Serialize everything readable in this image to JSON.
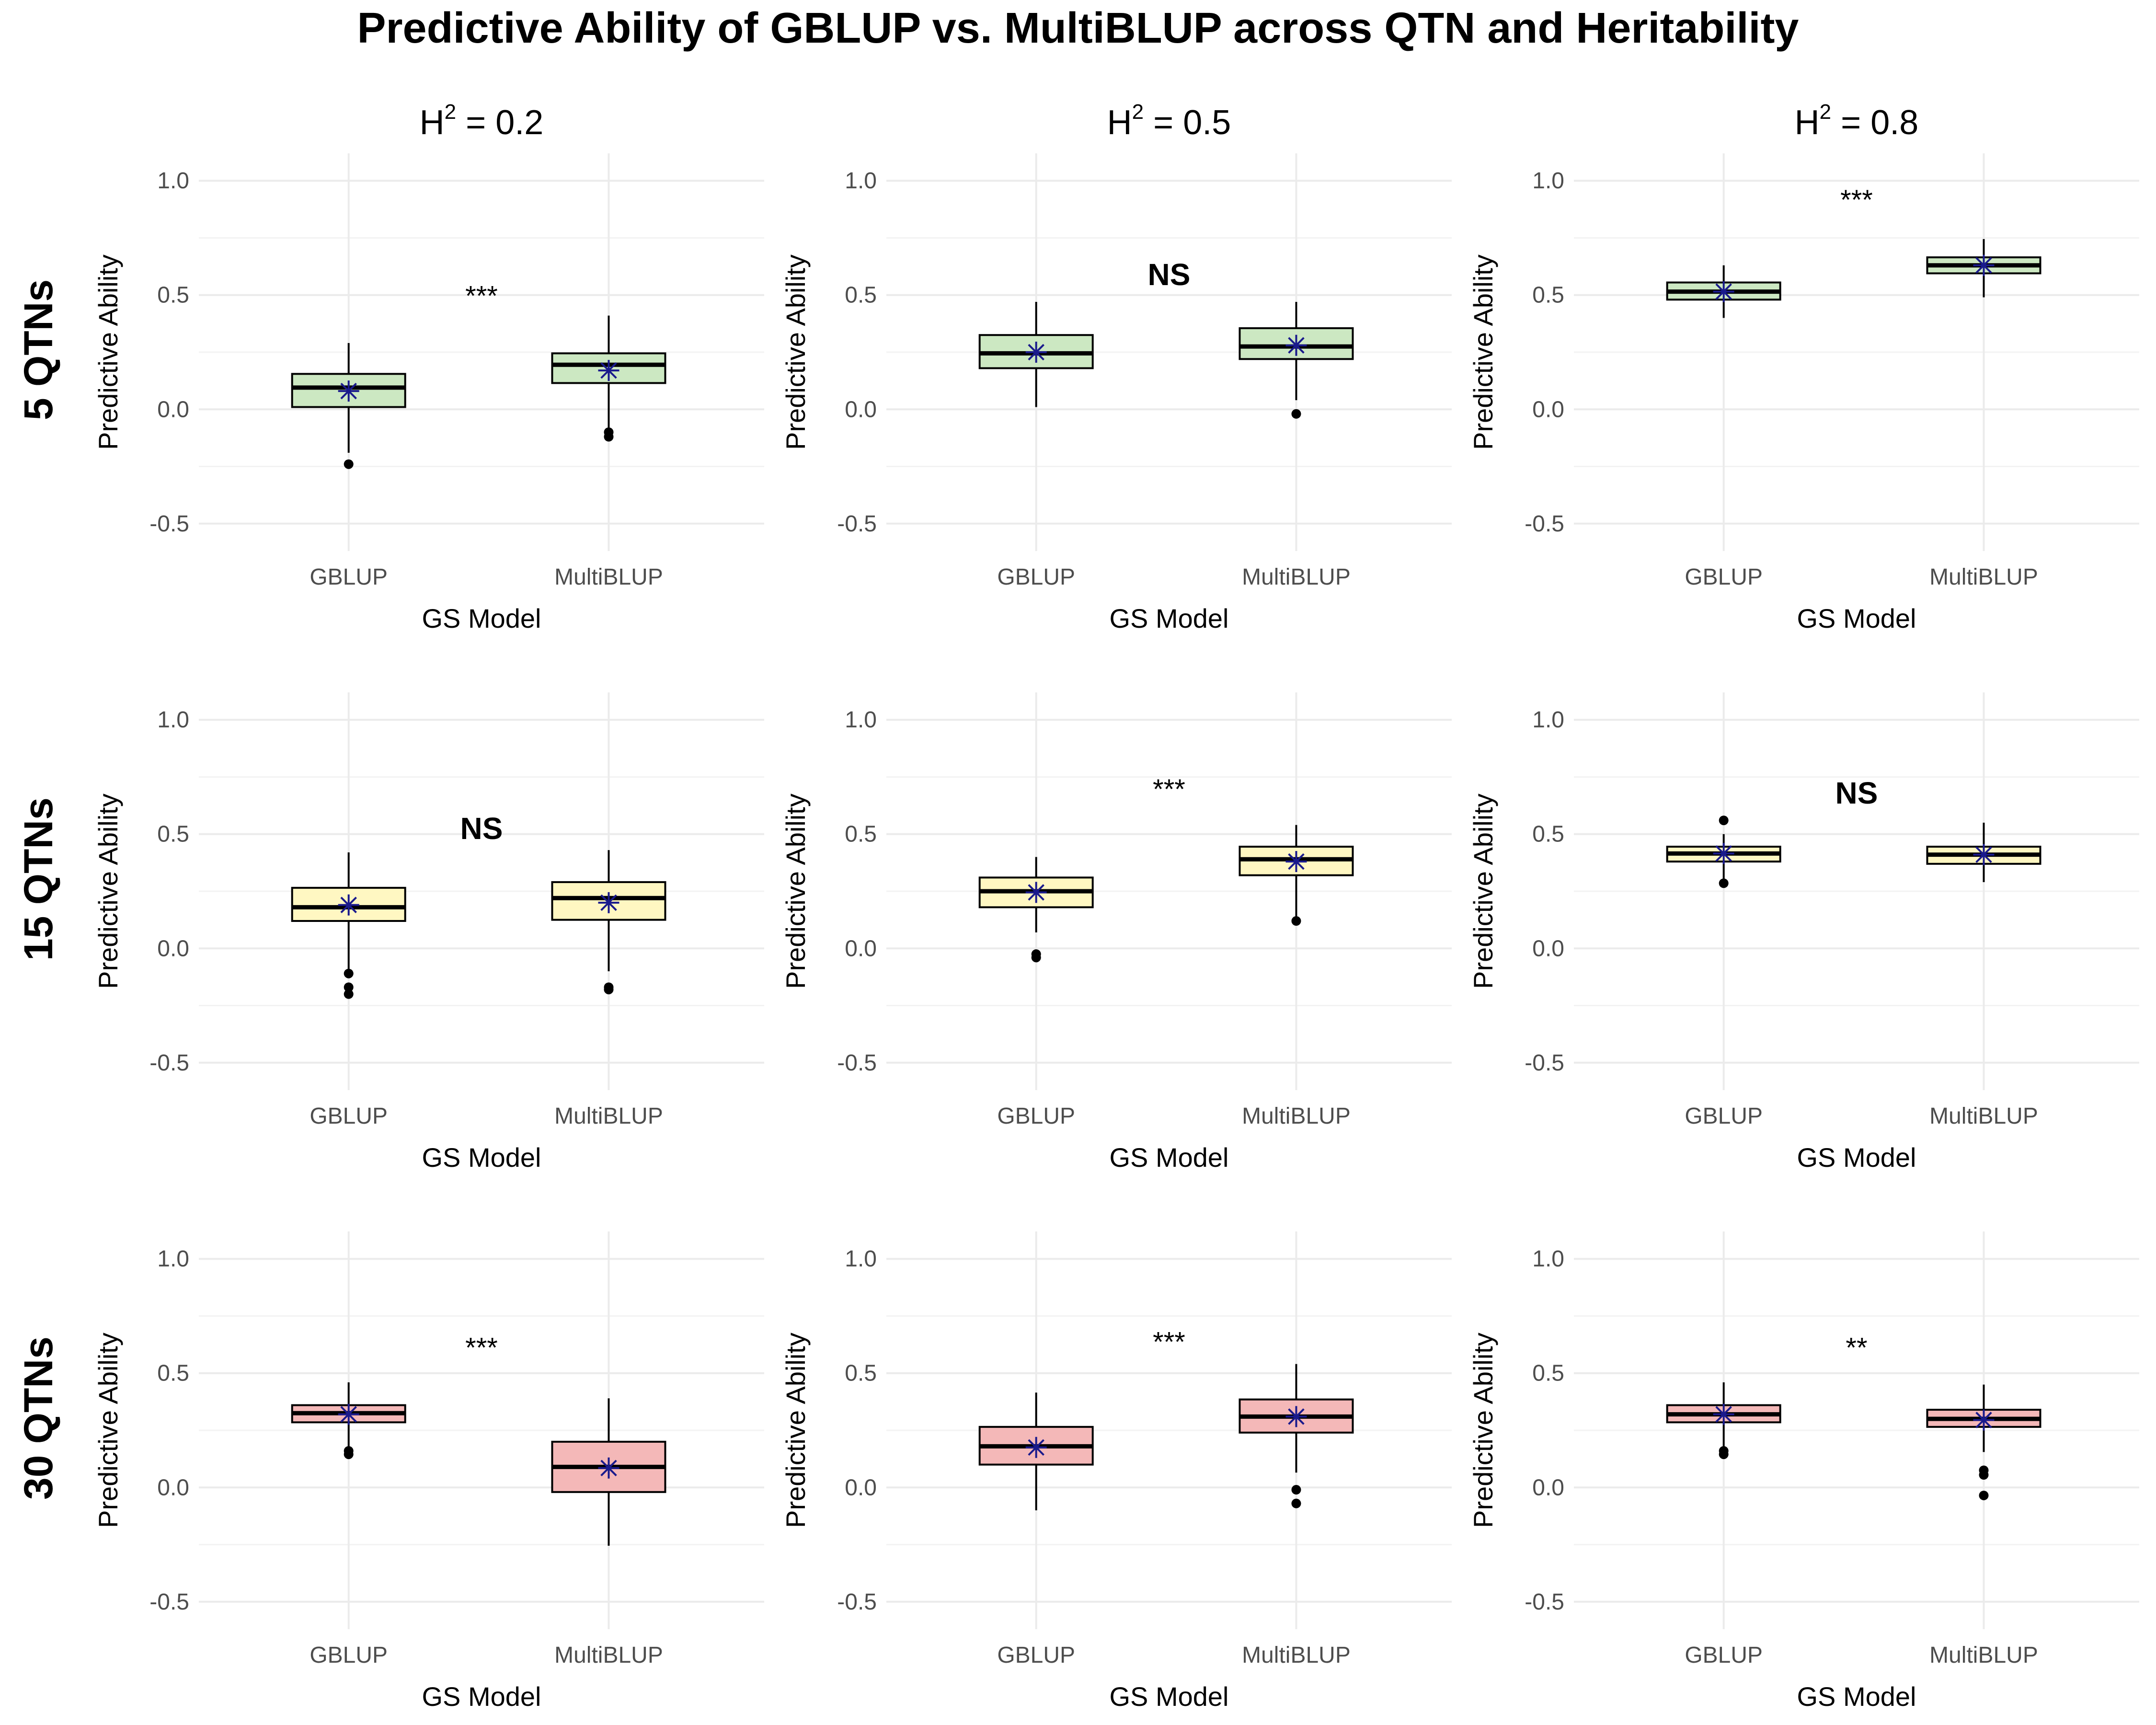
{
  "title": "Predictive Ability of GBLUP vs. MultiBLUP across QTN and Heritability",
  "row_labels": [
    "5 QTNs",
    "15 QTNs",
    "30 QTNs"
  ],
  "column_headers": [
    {
      "base": "H",
      "sup": "2",
      "rest": " = 0.2"
    },
    {
      "base": "H",
      "sup": "2",
      "rest": " = 0.5"
    },
    {
      "base": "H",
      "sup": "2",
      "rest": " = 0.8"
    }
  ],
  "colors": {
    "5 QTNs": "#cce8c2",
    "15 QTNs": "#fff7c2",
    "30 QTNs": "#f4b8b8",
    "mean_marker": "#1a1a8c",
    "grid": "#ebebeb"
  },
  "chart_data": [
    {
      "type": "box",
      "row": "5 QTNs",
      "col": "H2 = 0.2",
      "xlabel": "GS Model",
      "ylabel": "Predictive Ability",
      "ylim": [
        -0.5,
        1.0
      ],
      "yticks": [
        -0.5,
        0.0,
        0.5,
        1.0
      ],
      "ytick_labels": [
        "-0.5",
        "0.0",
        "0.5",
        "1.0"
      ],
      "categories": [
        "GBLUP",
        "MultiBLUP"
      ],
      "annotation": "***",
      "boxes": [
        {
          "whisker_low": -0.19,
          "q1": 0.01,
          "median": 0.095,
          "q3": 0.155,
          "whisker_high": 0.29,
          "mean": 0.08,
          "outliers": [
            -0.24
          ]
        },
        {
          "whisker_low": -0.08,
          "q1": 0.115,
          "median": 0.195,
          "q3": 0.245,
          "whisker_high": 0.41,
          "mean": 0.17,
          "outliers": [
            -0.1,
            -0.12
          ]
        }
      ]
    },
    {
      "type": "box",
      "row": "5 QTNs",
      "col": "H2 = 0.5",
      "xlabel": "GS Model",
      "ylabel": "Predictive Ability",
      "ylim": [
        -0.5,
        1.0
      ],
      "yticks": [
        -0.5,
        0.0,
        0.5,
        1.0
      ],
      "ytick_labels": [
        "-0.5",
        "0.0",
        "0.5",
        "1.0"
      ],
      "categories": [
        "GBLUP",
        "MultiBLUP"
      ],
      "annotation": "NS",
      "boxes": [
        {
          "whisker_low": 0.01,
          "q1": 0.18,
          "median": 0.245,
          "q3": 0.325,
          "whisker_high": 0.47,
          "mean": 0.25,
          "outliers": []
        },
        {
          "whisker_low": 0.04,
          "q1": 0.22,
          "median": 0.275,
          "q3": 0.355,
          "whisker_high": 0.47,
          "mean": 0.28,
          "outliers": [
            -0.02
          ]
        }
      ]
    },
    {
      "type": "box",
      "row": "5 QTNs",
      "col": "H2 = 0.8",
      "xlabel": "GS Model",
      "ylabel": "Predictive Ability",
      "ylim": [
        -0.5,
        1.0
      ],
      "yticks": [
        -0.5,
        0.0,
        0.5,
        1.0
      ],
      "ytick_labels": [
        "-0.5",
        "0.0",
        "0.5",
        "1.0"
      ],
      "categories": [
        "GBLUP",
        "MultiBLUP"
      ],
      "annotation": "***",
      "boxes": [
        {
          "whisker_low": 0.4,
          "q1": 0.48,
          "median": 0.515,
          "q3": 0.555,
          "whisker_high": 0.63,
          "mean": 0.515,
          "outliers": []
        },
        {
          "whisker_low": 0.49,
          "q1": 0.595,
          "median": 0.63,
          "q3": 0.665,
          "whisker_high": 0.745,
          "mean": 0.63,
          "outliers": []
        }
      ]
    },
    {
      "type": "box",
      "row": "15 QTNs",
      "col": "H2 = 0.2",
      "xlabel": "GS Model",
      "ylabel": "Predictive Ability",
      "ylim": [
        -0.5,
        1.0
      ],
      "yticks": [
        -0.5,
        0.0,
        0.5,
        1.0
      ],
      "ytick_labels": [
        "-0.5",
        "0.0",
        "0.5",
        "1.0"
      ],
      "categories": [
        "GBLUP",
        "MultiBLUP"
      ],
      "annotation": "NS",
      "boxes": [
        {
          "whisker_low": -0.1,
          "q1": 0.12,
          "median": 0.18,
          "q3": 0.265,
          "whisker_high": 0.42,
          "mean": 0.19,
          "outliers": [
            -0.11,
            -0.17,
            -0.2
          ]
        },
        {
          "whisker_low": -0.1,
          "q1": 0.125,
          "median": 0.22,
          "q3": 0.29,
          "whisker_high": 0.43,
          "mean": 0.2,
          "outliers": [
            -0.17,
            -0.18
          ]
        }
      ]
    },
    {
      "type": "box",
      "row": "15 QTNs",
      "col": "H2 = 0.5",
      "xlabel": "GS Model",
      "ylabel": "Predictive Ability",
      "ylim": [
        -0.5,
        1.0
      ],
      "yticks": [
        -0.5,
        0.0,
        0.5,
        1.0
      ],
      "ytick_labels": [
        "-0.5",
        "0.0",
        "0.5",
        "1.0"
      ],
      "categories": [
        "GBLUP",
        "MultiBLUP"
      ],
      "annotation": "***",
      "boxes": [
        {
          "whisker_low": 0.07,
          "q1": 0.18,
          "median": 0.25,
          "q3": 0.31,
          "whisker_high": 0.4,
          "mean": 0.245,
          "outliers": [
            -0.025,
            -0.04
          ]
        },
        {
          "whisker_low": 0.12,
          "q1": 0.32,
          "median": 0.39,
          "q3": 0.445,
          "whisker_high": 0.54,
          "mean": 0.38,
          "outliers": [
            0.12
          ]
        }
      ]
    },
    {
      "type": "box",
      "row": "15 QTNs",
      "col": "H2 = 0.8",
      "xlabel": "GS Model",
      "ylabel": "Predictive Ability",
      "ylim": [
        -0.5,
        1.0
      ],
      "yticks": [
        -0.5,
        0.0,
        0.5,
        1.0
      ],
      "ytick_labels": [
        "-0.5",
        "0.0",
        "0.5",
        "1.0"
      ],
      "categories": [
        "GBLUP",
        "MultiBLUP"
      ],
      "annotation": "NS",
      "boxes": [
        {
          "whisker_low": 0.3,
          "q1": 0.38,
          "median": 0.415,
          "q3": 0.445,
          "whisker_high": 0.5,
          "mean": 0.415,
          "outliers": [
            0.56,
            0.285
          ]
        },
        {
          "whisker_low": 0.29,
          "q1": 0.37,
          "median": 0.41,
          "q3": 0.445,
          "whisker_high": 0.55,
          "mean": 0.41,
          "outliers": []
        }
      ]
    },
    {
      "type": "box",
      "row": "30 QTNs",
      "col": "H2 = 0.2",
      "xlabel": "GS Model",
      "ylabel": "Predictive Ability",
      "ylim": [
        -0.5,
        1.0
      ],
      "yticks": [
        -0.5,
        0.0,
        0.5,
        1.0
      ],
      "ytick_labels": [
        "-0.5",
        "0.0",
        "0.5",
        "1.0"
      ],
      "categories": [
        "GBLUP",
        "MultiBLUP"
      ],
      "annotation": "***",
      "boxes": [
        {
          "whisker_low": 0.18,
          "q1": 0.285,
          "median": 0.325,
          "q3": 0.36,
          "whisker_high": 0.46,
          "mean": 0.32,
          "outliers": [
            0.16,
            0.145
          ]
        },
        {
          "whisker_low": -0.255,
          "q1": -0.02,
          "median": 0.09,
          "q3": 0.2,
          "whisker_high": 0.39,
          "mean": 0.085,
          "outliers": []
        }
      ]
    },
    {
      "type": "box",
      "row": "30 QTNs",
      "col": "H2 = 0.5",
      "xlabel": "GS Model",
      "ylabel": "Predictive Ability",
      "ylim": [
        -0.5,
        1.0
      ],
      "yticks": [
        -0.5,
        0.0,
        0.5,
        1.0
      ],
      "ytick_labels": [
        "-0.5",
        "0.0",
        "0.5",
        "1.0"
      ],
      "categories": [
        "GBLUP",
        "MultiBLUP"
      ],
      "annotation": "***",
      "boxes": [
        {
          "whisker_low": -0.1,
          "q1": 0.1,
          "median": 0.18,
          "q3": 0.265,
          "whisker_high": 0.415,
          "mean": 0.175,
          "outliers": []
        },
        {
          "whisker_low": 0.065,
          "q1": 0.24,
          "median": 0.31,
          "q3": 0.385,
          "whisker_high": 0.54,
          "mean": 0.31,
          "outliers": [
            -0.01,
            -0.07
          ]
        }
      ]
    },
    {
      "type": "box",
      "row": "30 QTNs",
      "col": "H2 = 0.8",
      "xlabel": "GS Model",
      "ylabel": "Predictive Ability",
      "ylim": [
        -0.5,
        1.0
      ],
      "yticks": [
        -0.5,
        0.0,
        0.5,
        1.0
      ],
      "ytick_labels": [
        "-0.5",
        "0.0",
        "0.5",
        "1.0"
      ],
      "categories": [
        "GBLUP",
        "MultiBLUP"
      ],
      "annotation": "**",
      "boxes": [
        {
          "whisker_low": 0.18,
          "q1": 0.285,
          "median": 0.32,
          "q3": 0.36,
          "whisker_high": 0.46,
          "mean": 0.32,
          "outliers": [
            0.16,
            0.145
          ]
        },
        {
          "whisker_low": 0.155,
          "q1": 0.265,
          "median": 0.3,
          "q3": 0.34,
          "whisker_high": 0.45,
          "mean": 0.295,
          "outliers": [
            0.075,
            0.055,
            -0.035
          ]
        }
      ]
    }
  ]
}
